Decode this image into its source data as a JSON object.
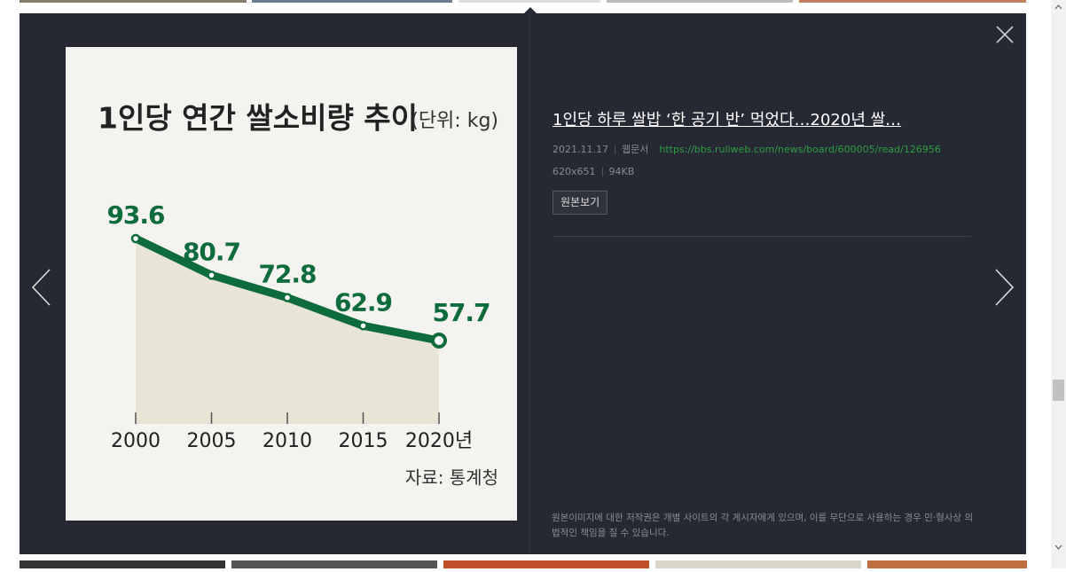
{
  "chart_data": {
    "type": "line",
    "title": "1인당 연간 쌀소비량 추이",
    "subtitle": "(단위: kg)",
    "categories": [
      "2000",
      "2005",
      "2010",
      "2015",
      "2020년"
    ],
    "values": [
      93.6,
      80.7,
      72.8,
      62.9,
      57.7
    ],
    "color": "#0e6b3b",
    "area_color": "#e8e4d6",
    "source": "자료: 통계청"
  },
  "detail": {
    "title": "1인당 하루 쌀밥 ‘한 공기 반’ 먹었다…2020년 쌀…",
    "date": "2021.11.17",
    "kind": "웹문서",
    "url": "https://bbs.ruliweb.com/news/board/600005/read/126956",
    "dimensions": "620x651",
    "size": "94KB",
    "button": "원본보기",
    "notice": "원본이미지에 대한 저작권은 개별 사이트의 각 게시자에게 있으며, 이를 무단으로 사용하는 경우 민·형사상 의 법적인 책임을 질 수 있습니다."
  }
}
